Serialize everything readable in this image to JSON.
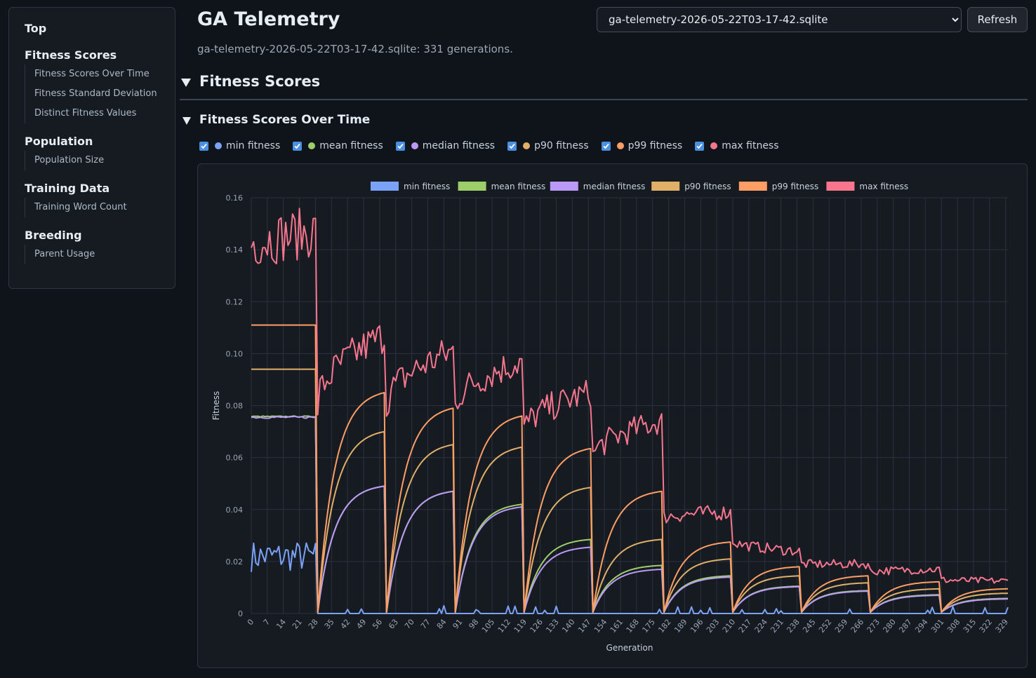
{
  "sidebar": {
    "top_label": "Top",
    "sections": [
      {
        "title": "Fitness Scores",
        "items": [
          "Fitness Scores Over Time",
          "Fitness Standard Deviation",
          "Distinct Fitness Values"
        ]
      },
      {
        "title": "Population",
        "items": [
          "Population Size"
        ]
      },
      {
        "title": "Training Data",
        "items": [
          "Training Word Count"
        ]
      },
      {
        "title": "Breeding",
        "items": [
          "Parent Usage"
        ]
      }
    ]
  },
  "header": {
    "title": "GA Telemetry",
    "db_select_value": "ga-telemetry-2026-05-22T03-17-42.sqlite",
    "refresh_label": "Refresh",
    "summary": "ga-telemetry-2026-05-22T03-17-42.sqlite: 331 generations."
  },
  "section": {
    "title": "Fitness Scores"
  },
  "subsection": {
    "title": "Fitness Scores Over Time"
  },
  "series_toggles": [
    {
      "label": "min fitness",
      "color": "#7aa2f7",
      "checked": true
    },
    {
      "label": "mean fitness",
      "color": "#9ece6a",
      "checked": true
    },
    {
      "label": "median fitness",
      "color": "#bb9af7",
      "checked": true
    },
    {
      "label": "p90 fitness",
      "color": "#e0af68",
      "checked": true
    },
    {
      "label": "p99 fitness",
      "color": "#ff9e64",
      "checked": true
    },
    {
      "label": "max fitness",
      "color": "#f7768e",
      "checked": true
    }
  ],
  "colors": {
    "checkbox": "#4a90e2",
    "grid": "#2b3140",
    "axis_text": "#9aa4b2"
  },
  "chart_data": {
    "type": "line",
    "xlabel": "Generation",
    "ylabel": "Fitness",
    "ylim": [
      0,
      0.16
    ],
    "yticks": [
      0,
      0.02,
      0.04,
      0.06,
      0.08,
      0.1,
      0.12,
      0.14,
      0.16
    ],
    "ytick_labels": [
      "0",
      "0.02",
      "0.04",
      "0.06",
      "0.08",
      "0.10",
      "0.12",
      "0.14",
      "0.16"
    ],
    "xlim": [
      0,
      330
    ],
    "xticks": [
      0,
      7,
      14,
      21,
      28,
      35,
      42,
      49,
      56,
      63,
      70,
      77,
      84,
      91,
      98,
      105,
      112,
      119,
      126,
      133,
      140,
      147,
      154,
      161,
      168,
      175,
      182,
      189,
      196,
      203,
      210,
      217,
      224,
      231,
      238,
      245,
      252,
      259,
      266,
      273,
      280,
      287,
      294,
      301,
      308,
      315,
      322,
      329
    ],
    "grid": true,
    "legend_position": "top",
    "generations": 331,
    "segment_boundaries": [
      28,
      58,
      88,
      118,
      148,
      179,
      209,
      239,
      269,
      300,
      330
    ],
    "segments": [
      {
        "start": 0,
        "end": 28,
        "min": [
          0.018,
          0.028
        ],
        "mean": [
          0.076,
          0.076
        ],
        "median": [
          0.0755,
          0.0757
        ],
        "p90": [
          0.094,
          0.094
        ],
        "p99": [
          0.111,
          0.111
        ],
        "max": [
          0.14,
          0.15
        ]
      },
      {
        "start": 29,
        "end": 58,
        "min": [
          0,
          0
        ],
        "mean": [
          0.0005,
          0.049
        ],
        "median": [
          0.0005,
          0.049
        ],
        "p90": [
          0.0005,
          0.07
        ],
        "p99": [
          0.0005,
          0.085
        ],
        "max": [
          0.08,
          0.107
        ]
      },
      {
        "start": 59,
        "end": 88,
        "min": [
          0,
          0
        ],
        "mean": [
          0.0005,
          0.047
        ],
        "median": [
          0.0005,
          0.047
        ],
        "p90": [
          0.0005,
          0.065
        ],
        "p99": [
          0.0005,
          0.079
        ],
        "max": [
          0.08,
          0.101
        ]
      },
      {
        "start": 89,
        "end": 118,
        "min": [
          0,
          0
        ],
        "mean": [
          0.0005,
          0.042
        ],
        "median": [
          0.0005,
          0.041
        ],
        "p90": [
          0.0005,
          0.064
        ],
        "p99": [
          0.0005,
          0.076
        ],
        "max": [
          0.08,
          0.097
        ]
      },
      {
        "start": 119,
        "end": 148,
        "min": [
          0,
          0
        ],
        "mean": [
          0.0005,
          0.0285
        ],
        "median": [
          0.0005,
          0.0255
        ],
        "p90": [
          0.0005,
          0.0485
        ],
        "p99": [
          0.0005,
          0.0635
        ],
        "max": [
          0.07,
          0.085
        ]
      },
      {
        "start": 149,
        "end": 179,
        "min": [
          0,
          0
        ],
        "mean": [
          0.0005,
          0.0185
        ],
        "median": [
          0.0005,
          0.017
        ],
        "p90": [
          0.0005,
          0.0285
        ],
        "p99": [
          0.0005,
          0.047
        ],
        "max": [
          0.06,
          0.074
        ]
      },
      {
        "start": 180,
        "end": 209,
        "min": [
          0,
          0
        ],
        "mean": [
          0.0005,
          0.0145
        ],
        "median": [
          0.0005,
          0.014
        ],
        "p90": [
          0.0005,
          0.021
        ],
        "p99": [
          0.0005,
          0.0275
        ],
        "max": [
          0.037,
          0.039
        ]
      },
      {
        "start": 210,
        "end": 239,
        "min": [
          0,
          0
        ],
        "mean": [
          0.0005,
          0.0105
        ],
        "median": [
          0.0005,
          0.0103
        ],
        "p90": [
          0.0005,
          0.0145
        ],
        "p99": [
          0.0005,
          0.018
        ],
        "max": [
          0.028,
          0.024
        ]
      },
      {
        "start": 240,
        "end": 269,
        "min": [
          0,
          0
        ],
        "mean": [
          0.0005,
          0.0088
        ],
        "median": [
          0.0005,
          0.0086
        ],
        "p90": [
          0.0005,
          0.0118
        ],
        "p99": [
          0.0005,
          0.0145
        ],
        "max": [
          0.019,
          0.019
        ]
      },
      {
        "start": 270,
        "end": 300,
        "min": [
          0,
          0
        ],
        "mean": [
          0.0005,
          0.0072
        ],
        "median": [
          0.0005,
          0.007
        ],
        "p90": [
          0.0005,
          0.0095
        ],
        "p99": [
          0.0005,
          0.0122
        ],
        "max": [
          0.016,
          0.017
        ]
      },
      {
        "start": 301,
        "end": 330,
        "min": [
          0,
          0
        ],
        "mean": [
          0.0005,
          0.0058
        ],
        "median": [
          0.0005,
          0.0056
        ],
        "p90": [
          0.0005,
          0.0078
        ],
        "p99": [
          0.0005,
          0.0095
        ],
        "max": [
          0.013,
          0.0125
        ]
      }
    ],
    "series": [
      {
        "name": "min fitness",
        "key": "min",
        "color": "#7aa2f7"
      },
      {
        "name": "mean fitness",
        "key": "mean",
        "color": "#9ece6a"
      },
      {
        "name": "median fitness",
        "key": "median",
        "color": "#bb9af7"
      },
      {
        "name": "p90 fitness",
        "key": "p90",
        "color": "#e0af68"
      },
      {
        "name": "p99 fitness",
        "key": "p99",
        "color": "#ff9e64"
      },
      {
        "name": "max fitness",
        "key": "max",
        "color": "#f7768e"
      }
    ]
  }
}
